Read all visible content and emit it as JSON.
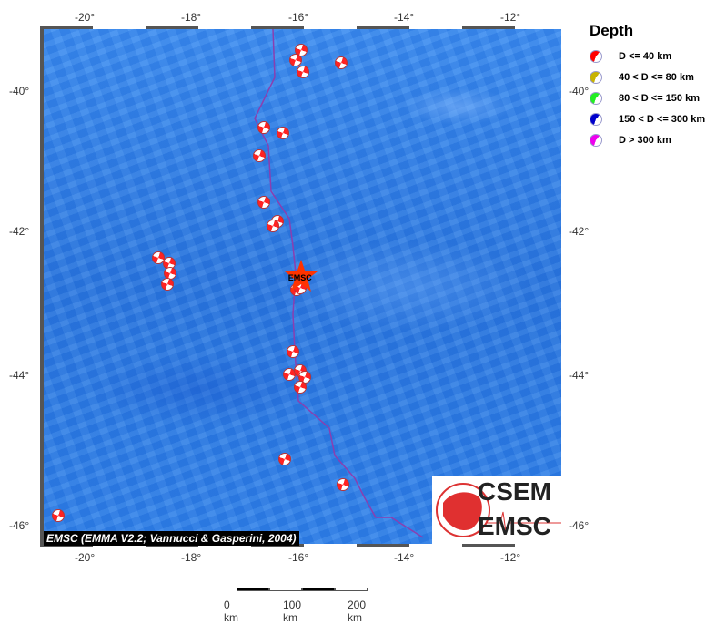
{
  "map": {
    "lon_ticks": [
      "-20°",
      "-18°",
      "-16°",
      "-14°",
      "-12°"
    ],
    "lat_ticks": [
      "-40°",
      "-42°",
      "-44°",
      "-46°"
    ],
    "events": [
      [
        -16.0,
        -39.4
      ],
      [
        -16.1,
        -39.55
      ],
      [
        -15.96,
        -39.71
      ],
      [
        -15.25,
        -39.58
      ],
      [
        -16.7,
        -40.51
      ],
      [
        -16.34,
        -40.58
      ],
      [
        -16.78,
        -40.91
      ],
      [
        -16.7,
        -41.57
      ],
      [
        -16.44,
        -41.84
      ],
      [
        -16.52,
        -41.91
      ],
      [
        -18.67,
        -42.35
      ],
      [
        -18.47,
        -42.43
      ],
      [
        -18.45,
        -42.57
      ],
      [
        -18.5,
        -42.72
      ],
      [
        -16.08,
        -42.8
      ],
      [
        -16.01,
        -42.77
      ],
      [
        -16.15,
        -43.66
      ],
      [
        -16.22,
        -43.97
      ],
      [
        -16.01,
        -43.92
      ],
      [
        -15.93,
        -44.01
      ],
      [
        -16.01,
        -44.15
      ],
      [
        -16.3,
        -45.1
      ],
      [
        -15.21,
        -45.44
      ],
      [
        -20.55,
        -45.85
      ]
    ],
    "epicenter": {
      "lon": -16.0,
      "lat": -42.65,
      "label": "EMSC",
      "color": "#ff3300"
    },
    "boundary_color": "#8a3fb0"
  },
  "legend": {
    "title": "Depth",
    "items": [
      {
        "label": "D <= 40 km",
        "color": "#ff0000"
      },
      {
        "label": "40 < D <= 80 km",
        "color": "#c8b400"
      },
      {
        "label": "80 < D <= 150 km",
        "color": "#22ee22"
      },
      {
        "label": "150 < D <= 300 km",
        "color": "#0000cc"
      },
      {
        "label": "D > 300 km",
        "color": "#ee00ee"
      }
    ]
  },
  "credit": "EMSC (EMMA V2.2; Vannucci & Gasperini, 2004)",
  "logo": {
    "line1": "CSEM",
    "line2": "EMSC"
  },
  "scale": {
    "labels": [
      "0 km",
      "100 km",
      "200 km"
    ]
  }
}
